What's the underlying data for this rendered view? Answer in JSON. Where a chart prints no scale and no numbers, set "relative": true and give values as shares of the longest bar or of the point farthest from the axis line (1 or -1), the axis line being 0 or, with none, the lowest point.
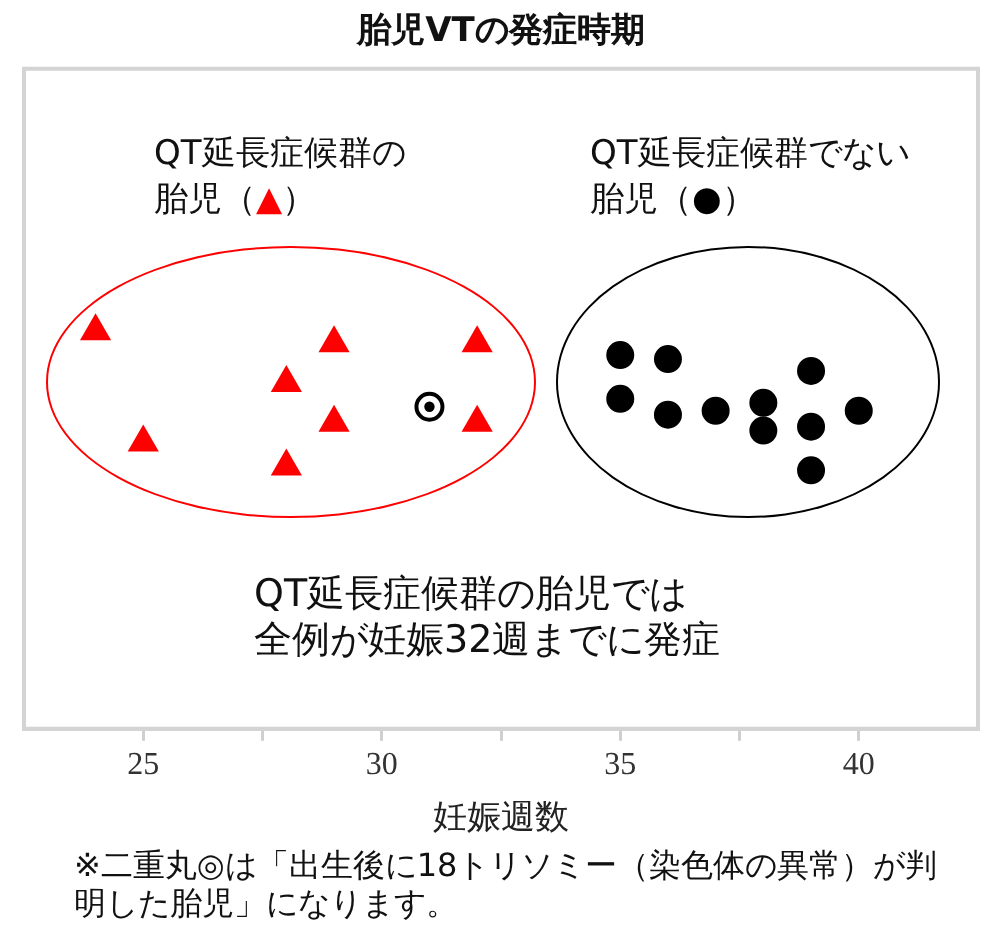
{
  "chart_data": {
    "type": "scatter",
    "title": "胎児VTの発症時期",
    "xlabel": "妊娠週数",
    "relative": true,
    "xlim": [
      22.5,
      42.5
    ],
    "xticks": [
      25,
      {
        "value": 27.5,
        "label": null
      },
      30,
      {
        "value": 32.5,
        "label": null
      },
      35,
      {
        "value": 37.5,
        "label": null
      },
      40
    ],
    "series": [
      {
        "color": "#ff0000",
        "marker": "triangle",
        "x": [
          24,
          25,
          28,
          28,
          29,
          29,
          32,
          32
        ],
        "values": [
          1.0,
          0.72,
          0.87,
          0.66,
          0.97,
          0.77,
          0.97,
          0.77
        ]
      },
      {
        "color": "#000000",
        "marker": "circle",
        "x": [
          35,
          35,
          36,
          36,
          37,
          38,
          38,
          39,
          39,
          39,
          40
        ],
        "values": [
          0.94,
          0.83,
          0.93,
          0.79,
          0.8,
          0.82,
          0.75,
          0.9,
          0.76,
          0.65,
          0.8
        ]
      },
      {
        "color": "#000000",
        "marker": "circle",
        "x": [
          31
        ],
        "values": [
          0.81
        ]
      }
    ],
    "annotations": [
      "QT延長症候群の胎児（▲）",
      "QT延長症候群でない胎児（●）",
      "QT延長症候群の胎児では",
      "全例が妊娠32週までに発症",
      "※二重丸◎は「出生後に18トリソミー（染色体の異常）が判明した胎児」になります。"
    ]
  }
}
